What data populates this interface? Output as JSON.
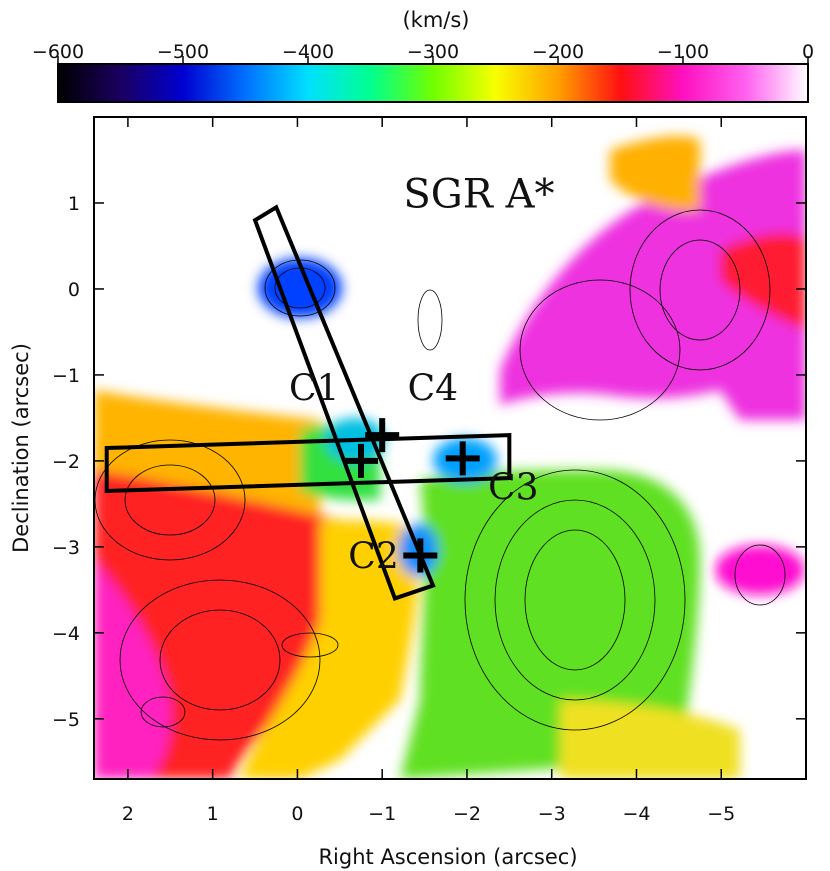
{
  "chart_data": {
    "type": "heatmap",
    "title": "",
    "xlabel": "Right Ascension (arcsec)",
    "ylabel": "Declination (arcsec)",
    "xlim": [
      2.4,
      -6.0
    ],
    "ylim": [
      -5.7,
      2.0
    ],
    "x_ticks": [
      2,
      1,
      0,
      -1,
      -2,
      -3,
      -4,
      -5
    ],
    "x_tick_labels": [
      "2",
      "1",
      "0",
      "−1",
      "−2",
      "−3",
      "−4",
      "−5"
    ],
    "y_ticks": [
      1,
      0,
      -1,
      -2,
      -3,
      -4,
      -5
    ],
    "y_tick_labels": [
      "1",
      "0",
      "−1",
      "−2",
      "−3",
      "−4",
      "−5"
    ],
    "colorbar": {
      "label": "(km/s)",
      "range": [
        -600,
        0
      ],
      "ticks": [
        -600,
        -500,
        -400,
        -300,
        -200,
        -100,
        0
      ],
      "tick_labels": [
        "−600",
        "−500",
        "−400",
        "−300",
        "−200",
        "−100",
        "0"
      ],
      "colormap": [
        "#000000",
        "#1a0060",
        "#0000d0",
        "#0070ff",
        "#00e0ff",
        "#00ff90",
        "#70ff00",
        "#f8ff00",
        "#ffa000",
        "#ff1010",
        "#ff10c0",
        "#ff60f0",
        "#ffffff"
      ]
    },
    "annotations": [
      {
        "label": "SGR A*",
        "x": -1.25,
        "y": 0.95
      },
      {
        "label": "C1",
        "x": 0.1,
        "y": -1.3
      },
      {
        "label": "C4",
        "x": -1.3,
        "y": -1.3
      },
      {
        "label": "C3",
        "x": -2.25,
        "y": -2.45
      },
      {
        "label": "C2",
        "x": -0.6,
        "y": -3.25
      }
    ],
    "markers": [
      {
        "name": "C1",
        "x": -0.75,
        "y": -2.0
      },
      {
        "name": "C4",
        "x": -1.0,
        "y": -1.7
      },
      {
        "name": "C3",
        "x": -1.95,
        "y": -1.97
      },
      {
        "name": "C2",
        "x": -1.45,
        "y": -3.1
      }
    ],
    "boxes": [
      {
        "name": "slit-1",
        "corners": [
          [
            0.5,
            0.8
          ],
          [
            0.25,
            0.95
          ],
          [
            -1.6,
            -3.45
          ],
          [
            -1.15,
            -3.6
          ]
        ]
      },
      {
        "name": "slit-2",
        "corners": [
          [
            2.25,
            -1.85
          ],
          [
            -2.5,
            -1.7
          ],
          [
            -2.5,
            -2.2
          ],
          [
            2.25,
            -2.35
          ]
        ]
      }
    ],
    "grid": false,
    "legend": "none"
  }
}
